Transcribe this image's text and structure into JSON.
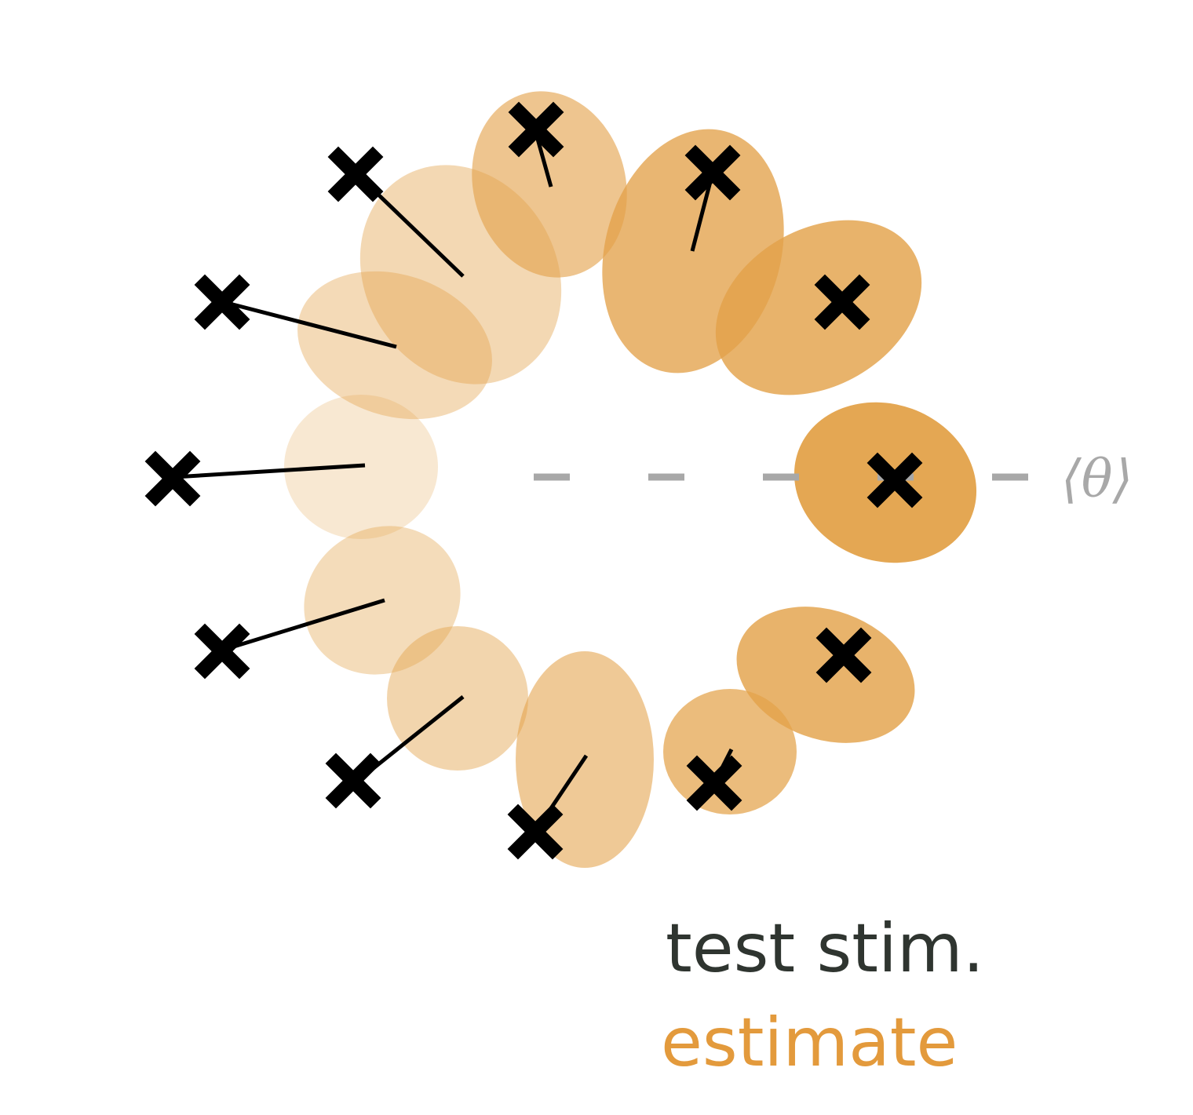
{
  "mean_label": "⟨θ⟩",
  "legend": {
    "test_label": "test stim.",
    "estimate_label": "estimate"
  },
  "colors": {
    "estimate": "#e3a24a",
    "legend_estimate": "#e39a3c",
    "legend_test": "#2f3530",
    "reference_line": "#a8a8a8",
    "marker": "#000000"
  }
}
